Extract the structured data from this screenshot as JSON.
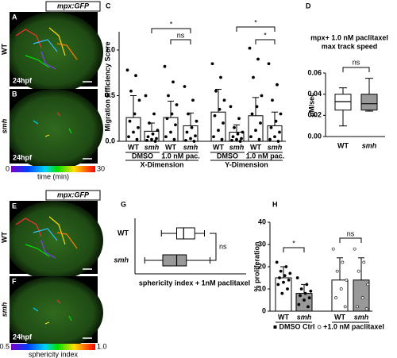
{
  "images": {
    "top": {
      "header": "mpx:GFP",
      "panels": [
        {
          "letter": "A",
          "genotype": "WT",
          "stage": "24hpf"
        },
        {
          "letter": "B",
          "genotype": "smh",
          "stage": "24hpf"
        }
      ],
      "colorbar": {
        "min": "0",
        "max": "30",
        "label": "time (min)"
      }
    },
    "bottom": {
      "header": "mpx:GFP",
      "panels": [
        {
          "letter": "E",
          "genotype": "WT",
          "stage": ""
        },
        {
          "letter": "F",
          "genotype": "smh",
          "stage": "24hpf"
        }
      ],
      "colorbar": {
        "min": "0.5",
        "max": "1.0",
        "label": "sphericity index"
      }
    }
  },
  "chart_data": [
    {
      "type": "bar",
      "panel": "C",
      "y_label": "Migration Efficiency Score",
      "categories": [
        "WT",
        "smh",
        "WT",
        "smh",
        "WT",
        "smh",
        "WT",
        "smh"
      ],
      "groups": [
        "DMSO",
        "1.0 nM pac.",
        "DMSO",
        "1.0 nM pac."
      ],
      "dimensions": [
        "X-Dimension",
        "Y-Dimension"
      ],
      "values": [
        0.26,
        0.11,
        0.26,
        0.17,
        0.32,
        0.1,
        0.28,
        0.17
      ],
      "errors": [
        0.24,
        0.09,
        0.18,
        0.14,
        0.25,
        0.08,
        0.2,
        0.15
      ],
      "points": [
        [
          0.78,
          0.72,
          0.55,
          0.45,
          0.3,
          0.22,
          0.15,
          0.1,
          0.05,
          0.02
        ],
        [
          0.5,
          0.3,
          0.2,
          0.12,
          0.08,
          0.05,
          0.03,
          0.02,
          0.01,
          0
        ],
        [
          0.82,
          0.65,
          0.5,
          0.4,
          0.3,
          0.25,
          0.18,
          0.1,
          0.05,
          0.02
        ],
        [
          0.6,
          0.45,
          0.3,
          0.22,
          0.15,
          0.1,
          0.06,
          0.03,
          0.01,
          0
        ],
        [
          0.85,
          0.7,
          0.55,
          0.45,
          0.35,
          0.28,
          0.2,
          0.12,
          0.05,
          0.02
        ],
        [
          0.38,
          0.25,
          0.15,
          0.1,
          0.08,
          0.05,
          0.03,
          0.02,
          0.01,
          0
        ],
        [
          1.02,
          0.9,
          0.7,
          0.5,
          0.38,
          0.3,
          0.2,
          0.12,
          0.05,
          0.02
        ],
        [
          0.85,
          0.62,
          0.45,
          0.3,
          0.22,
          0.15,
          0.1,
          0.05,
          0.02,
          0
        ]
      ],
      "colors": [
        "#ffffff",
        "#ffffff",
        "#ffffff",
        "#ffffff",
        "#ffffff",
        "#ffffff",
        "#ffffff",
        "#ffffff"
      ],
      "ylim": [
        0,
        1.2
      ],
      "yticks": [
        {
          "value": 0,
          "label": "0.0"
        },
        {
          "value": 0.5,
          "label": "0.5"
        },
        {
          "value": 1,
          "label": "1.0"
        }
      ],
      "annotations": [
        "*",
        "ns",
        "*",
        "*"
      ]
    },
    {
      "type": "box",
      "panel": "D",
      "title_lines": [
        "mpx+ 1.0 nM paclitaxel",
        "max track speed"
      ],
      "y_label": "µM/sec",
      "categories": [
        "WT",
        "smh"
      ],
      "boxes": [
        {
          "min": 0.01,
          "q1": 0.025,
          "median": 0.033,
          "q3": 0.04,
          "max": 0.046
        },
        {
          "min": 0.024,
          "q1": 0.025,
          "median": 0.031,
          "q3": 0.04,
          "max": 0.055
        }
      ],
      "colors": [
        "#ffffff",
        "#999999"
      ],
      "ylim": [
        0,
        0.06
      ],
      "yticks": [
        {
          "value": 0,
          "label": "0.00"
        },
        {
          "value": 0.02,
          "label": "0.02"
        },
        {
          "value": 0.04,
          "label": "0.04"
        },
        {
          "value": 0.06,
          "label": "0.06"
        }
      ],
      "annotations": [
        "ns"
      ]
    },
    {
      "type": "box",
      "orientation": "horizontal",
      "panel": "G",
      "x_label": "sphericity index + 1nM paclitaxel",
      "categories": [
        "WT",
        "smh"
      ],
      "boxes": [
        {
          "min": 0.39,
          "q1": 0.5,
          "median": 0.55,
          "q3": 0.63,
          "max": 0.7
        },
        {
          "min": 0.27,
          "q1": 0.4,
          "median": 0.5,
          "q3": 0.57,
          "max": 0.74
        }
      ],
      "colors": [
        "#ffffff",
        "#999999"
      ],
      "xlim": [
        0.2,
        1.0
      ],
      "annotations": [
        "ns"
      ]
    },
    {
      "type": "bar",
      "panel": "H",
      "y_label": "% proliferation",
      "categories": [
        "WT",
        "smh",
        "WT",
        "smh"
      ],
      "series": [
        {
          "name": "DMSO Ctrl",
          "marker": "filled"
        },
        {
          "name": "+1.0 nM paclitaxel",
          "marker": "open"
        }
      ],
      "values": [
        15,
        8,
        14,
        14
      ],
      "errors": [
        5,
        4,
        10,
        10
      ],
      "points": [
        [
          22,
          20,
          18,
          17,
          16,
          15,
          14,
          13,
          12,
          10,
          8
        ],
        [
          15,
          12,
          10,
          9,
          8,
          7,
          6,
          5,
          3,
          2
        ],
        [
          28,
          22,
          18,
          14,
          10,
          6,
          2
        ],
        [
          28,
          22,
          18,
          12,
          6,
          2,
          1
        ]
      ],
      "colors": [
        "#ffffff",
        "#999999",
        "#ffffff",
        "#999999"
      ],
      "ylim": [
        0,
        40
      ],
      "yticks": [
        0,
        10,
        20,
        30,
        40
      ],
      "annotations": [
        "*",
        "ns"
      ]
    }
  ]
}
